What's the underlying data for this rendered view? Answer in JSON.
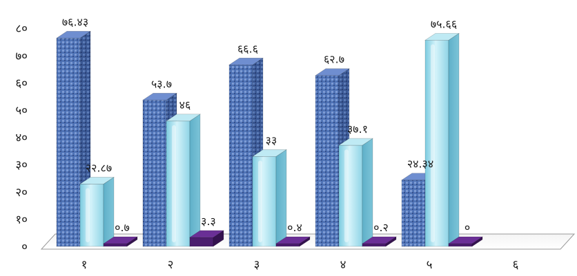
{
  "chart_data": {
    "type": "bar",
    "style": "3d-clustered-column",
    "categories": [
      "१",
      "२",
      "३",
      "४",
      "५",
      "६"
    ],
    "ylim": [
      0,
      80
    ],
    "yticks": [
      0,
      10,
      20,
      30,
      40,
      50,
      60,
      70,
      80
    ],
    "ytick_labels": [
      "०",
      "१०",
      "२०",
      "३०",
      "४०",
      "५०",
      "६०",
      "७०",
      "८०"
    ],
    "grid": false,
    "legend": "none",
    "series": [
      {
        "values": [
          76.43,
          53.7,
          66.6,
          62.7,
          24.34,
          null
        ],
        "labels": [
          "७६.४३",
          "५३.७",
          "६६.६",
          "६२.७",
          "२४.३४",
          ""
        ],
        "color": "#4a6fb0",
        "texture": "blue-pattern"
      },
      {
        "values": [
          22.87,
          46,
          33,
          37.1,
          75.66,
          null
        ],
        "labels": [
          "२२.८७",
          "४६",
          "३३",
          "३७.१",
          "७५.६६",
          ""
        ],
        "color": "#9fdaea",
        "texture": "water-droplets"
      },
      {
        "values": [
          0.7,
          3.3,
          0.4,
          0.2,
          0,
          null
        ],
        "labels": [
          "०.७",
          "३.३",
          "०.४",
          "०.२",
          "०",
          ""
        ],
        "color": "#4b1e6e",
        "texture": "solid"
      }
    ]
  }
}
